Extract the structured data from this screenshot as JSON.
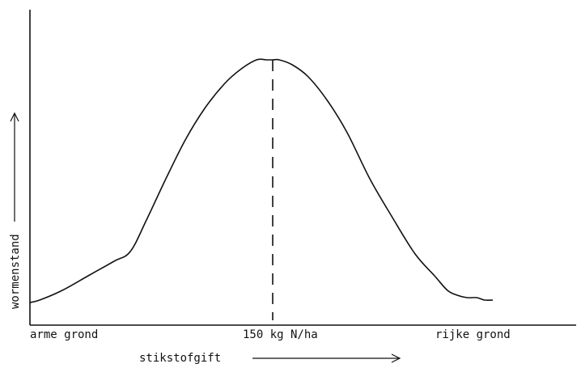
{
  "chart_data": {
    "type": "line",
    "title": "",
    "xlabel": "stikstofgift",
    "ylabel": "wormenstand",
    "x_tick_labels": {
      "left": "arme grond",
      "center": "150 kg N/ha",
      "right": "rijke grond"
    },
    "axis_ranges": {
      "x": [
        0,
        300
      ],
      "y": [
        0,
        100
      ]
    },
    "grid": false,
    "legend": "none",
    "series": [
      {
        "values_x": [
          0,
          6,
          20,
          36,
          52,
          62,
          72,
          84,
          96,
          108,
          120,
          130,
          140,
          146,
          150,
          154,
          162,
          172,
          184,
          196,
          210,
          224,
          238,
          250,
          258,
          264,
          270,
          276,
          281,
          286
        ],
        "values_y": [
          0,
          1,
          5,
          11,
          17,
          21,
          34,
          51,
          67,
          80,
          90,
          96,
          100,
          100,
          100,
          100,
          98,
          93,
          83,
          70,
          51,
          35,
          20,
          11,
          5,
          3,
          2,
          2,
          1,
          1
        ],
        "color": "#111111"
      }
    ],
    "reference_line": {
      "x": 150,
      "style": "dashed",
      "color": "#111111"
    },
    "axis_arrows": true
  }
}
